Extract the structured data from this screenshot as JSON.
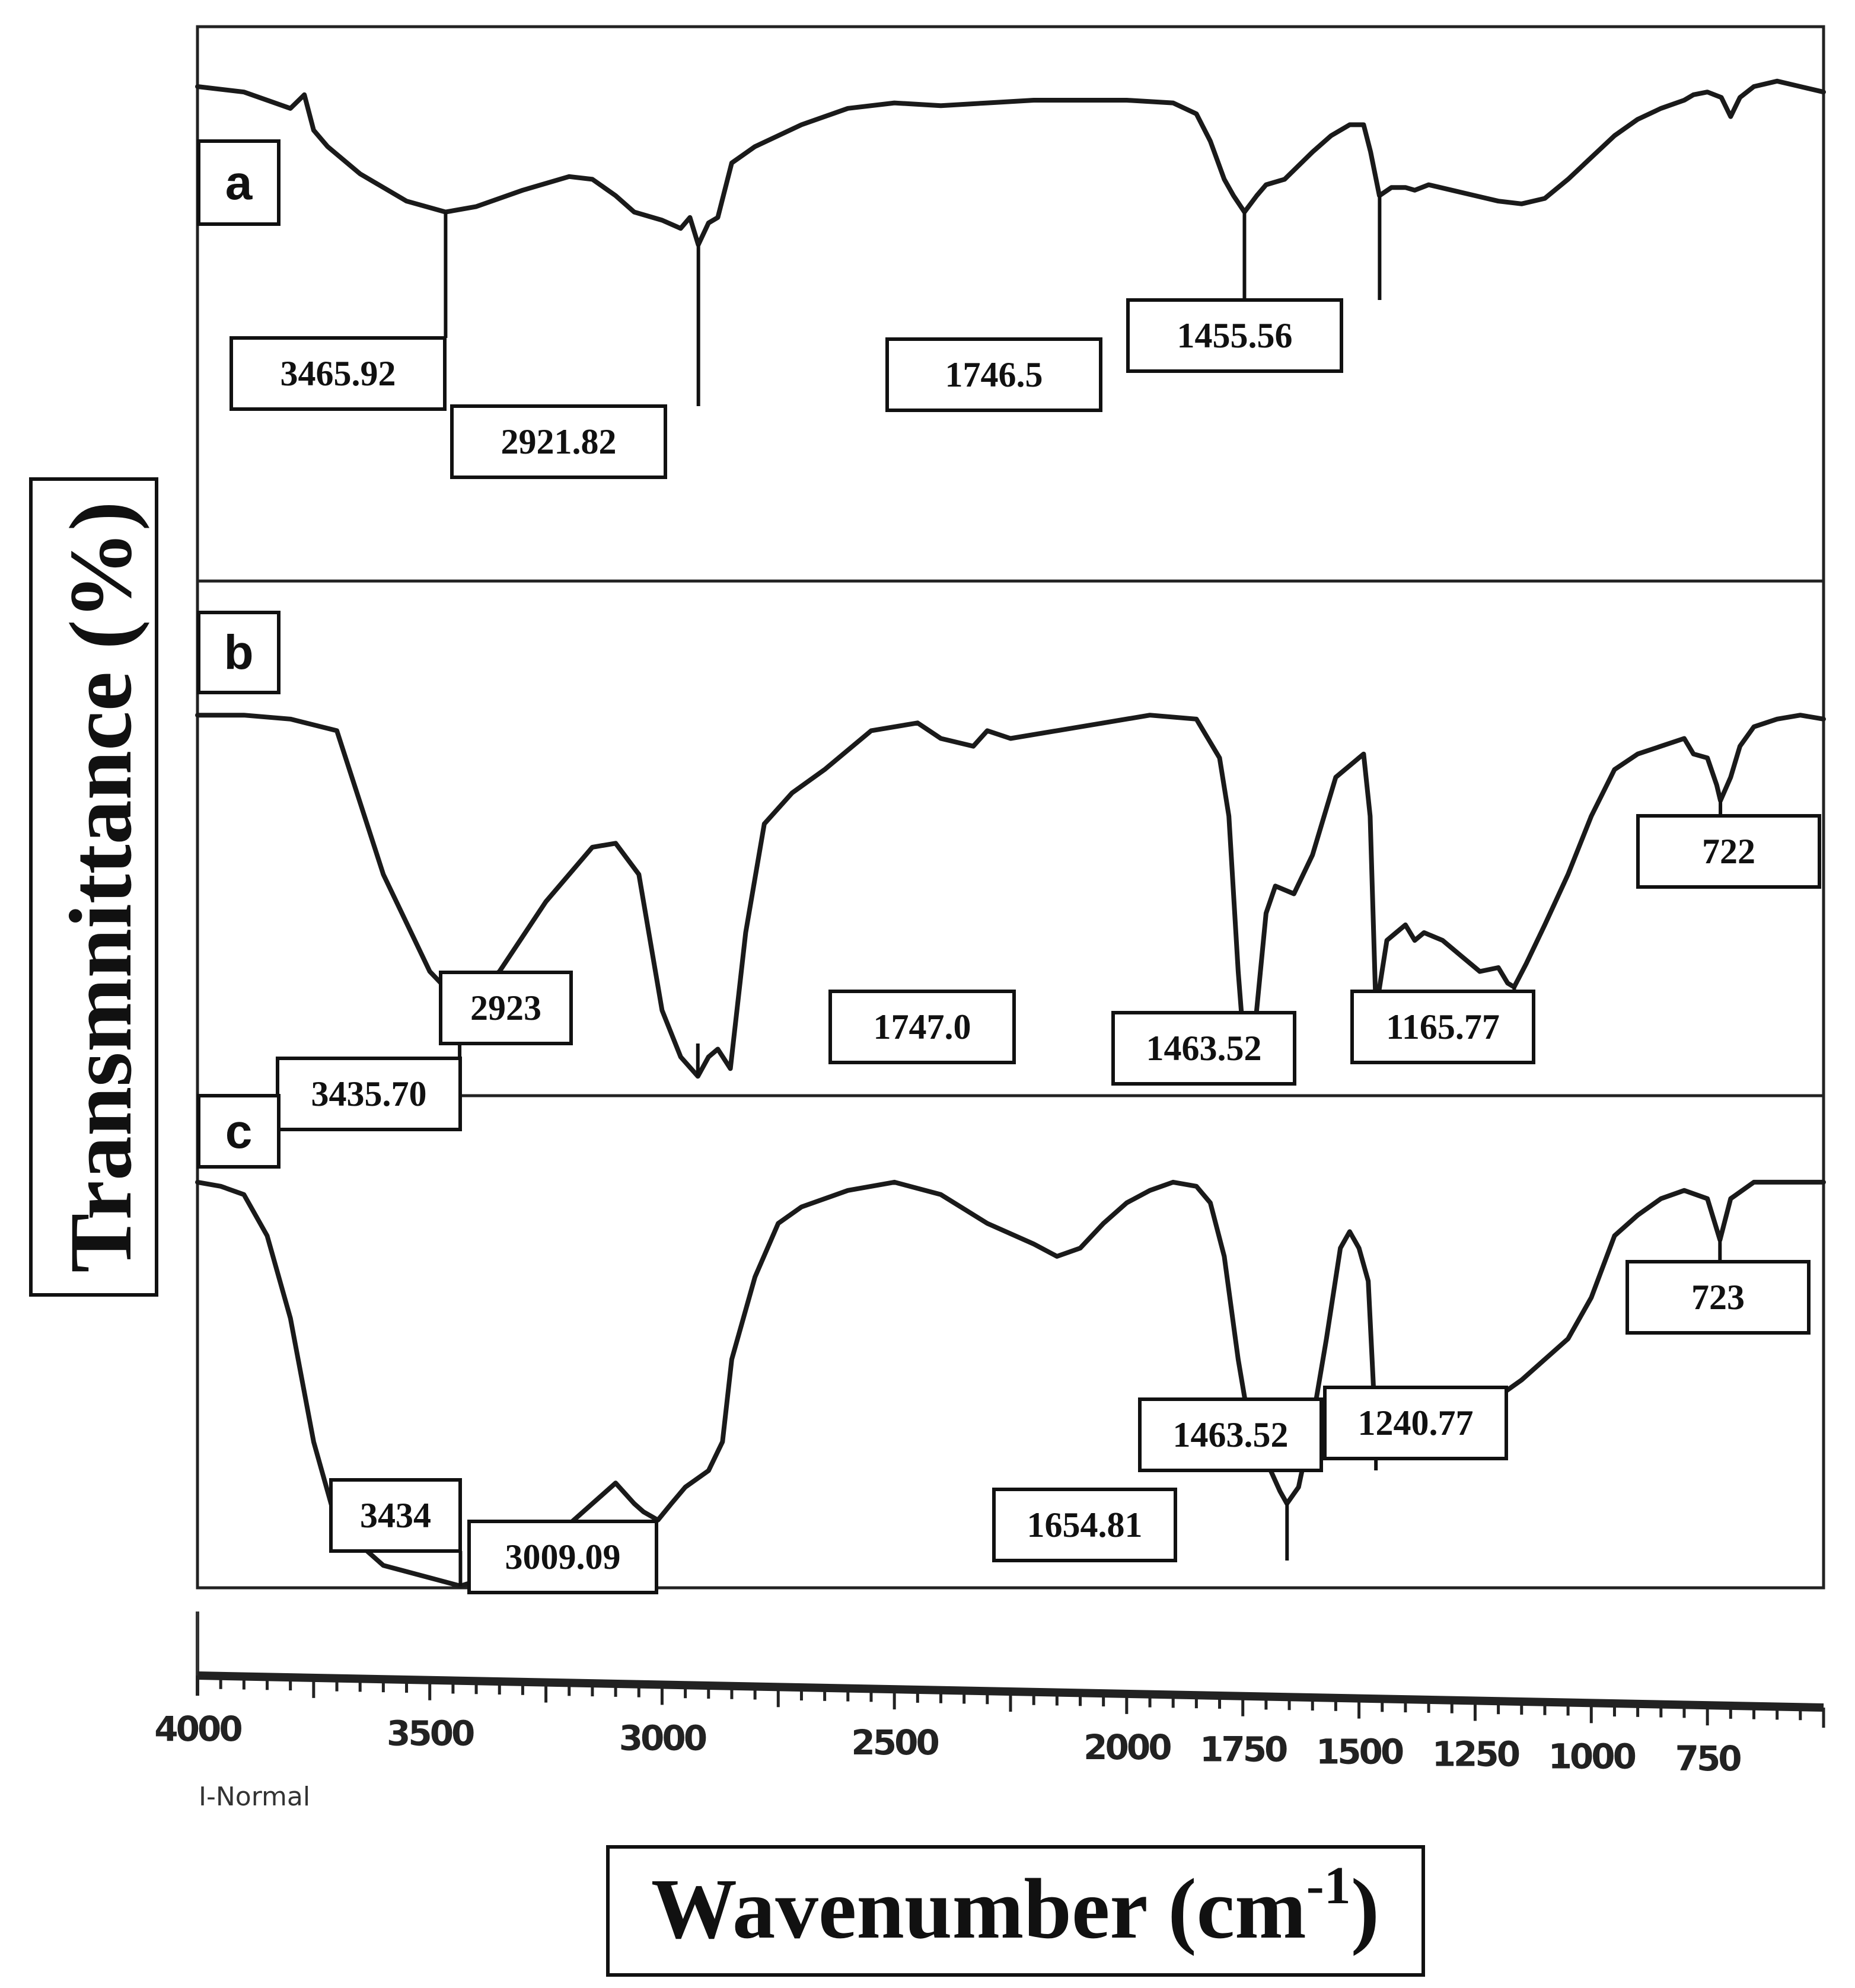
{
  "chart_data": {
    "type": "line",
    "title": "",
    "xlabel": "Wavenumber (cm-1)",
    "xlabel_main": "Wavenumber (cm",
    "xlabel_sup": "-1",
    "xlabel_close": ")",
    "ylabel": "Transmnittance (%)",
    "x_unit_note": "I-Normal",
    "xlim": [
      4000,
      500
    ],
    "x_ticks": [
      4000,
      3500,
      3000,
      2500,
      2000,
      1750,
      1500,
      1250,
      1000,
      750
    ],
    "x_tick_labels": [
      "4000",
      "3500",
      "3000",
      "2500",
      "2000",
      "1750",
      "1500",
      "1250",
      "1000",
      "750"
    ],
    "series": [
      {
        "name": "a",
        "x": [
          4000,
          3900,
          3800,
          3770,
          3750,
          3720,
          3650,
          3550,
          3466,
          3400,
          3300,
          3200,
          3150,
          3100,
          3060,
          3000,
          2960,
          2940,
          2922,
          2900,
          2880,
          2850,
          2800,
          2700,
          2600,
          2500,
          2400,
          2300,
          2200,
          2100,
          2000,
          1900,
          1850,
          1820,
          1790,
          1770,
          1746.5,
          1720,
          1700,
          1660,
          1600,
          1560,
          1520,
          1490,
          1475,
          1456,
          1430,
          1400,
          1380,
          1350,
          1300,
          1250,
          1200,
          1150,
          1100,
          1050,
          1000,
          950,
          900,
          850,
          800,
          780,
          750,
          720,
          700,
          680,
          650,
          600,
          550,
          500
        ],
        "y": [
          90,
          88,
          82,
          87,
          74,
          68,
          58,
          48,
          44,
          46,
          52,
          57,
          56,
          50,
          44,
          41,
          38,
          42,
          32,
          40,
          42,
          62,
          68,
          76,
          82,
          84,
          83,
          84,
          85,
          85,
          85,
          84,
          80,
          70,
          56,
          50,
          44,
          50,
          54,
          56,
          66,
          72,
          76,
          76,
          66,
          50,
          53,
          53,
          52,
          54,
          52,
          50,
          48,
          47,
          49,
          56,
          64,
          72,
          78,
          82,
          85,
          87,
          88,
          86,
          79,
          86,
          90,
          92,
          90,
          88
        ]
      },
      {
        "name": "b",
        "x": [
          4000,
          3900,
          3800,
          3700,
          3600,
          3500,
          3436,
          3350,
          3250,
          3150,
          3100,
          3050,
          3000,
          2960,
          2923,
          2900,
          2880,
          2853,
          2820,
          2780,
          2720,
          2650,
          2550,
          2450,
          2400,
          2330,
          2300,
          2250,
          2150,
          2050,
          1950,
          1850,
          1800,
          1780,
          1760,
          1747,
          1730,
          1700,
          1680,
          1640,
          1600,
          1550,
          1510,
          1490,
          1476,
          1463.5,
          1440,
          1420,
          1400,
          1380,
          1360,
          1320,
          1280,
          1240,
          1200,
          1180,
          1166,
          1140,
          1100,
          1050,
          1000,
          950,
          900,
          850,
          800,
          780,
          750,
          730,
          722,
          700,
          680,
          650,
          600,
          550,
          500
        ],
        "y": [
          96,
          96,
          95,
          92,
          55,
          30,
          22,
          30,
          48,
          62,
          63,
          55,
          20,
          8,
          3,
          8,
          10,
          5,
          40,
          68,
          76,
          82,
          92,
          94,
          90,
          88,
          92,
          90,
          92,
          94,
          96,
          95,
          85,
          70,
          30,
          10,
          8,
          45,
          52,
          50,
          60,
          80,
          84,
          86,
          70,
          20,
          38,
          40,
          42,
          38,
          40,
          38,
          34,
          30,
          31,
          27,
          26,
          32,
          42,
          55,
          70,
          82,
          86,
          88,
          90,
          86,
          85,
          78,
          74,
          80,
          88,
          93,
          95,
          96,
          95
        ]
      },
      {
        "name": "c",
        "x": [
          4000,
          3950,
          3900,
          3850,
          3800,
          3750,
          3700,
          3600,
          3500,
          3434,
          3350,
          3250,
          3150,
          3100,
          3060,
          3040,
          3009,
          2980,
          2950,
          2900,
          2870,
          2850,
          2800,
          2750,
          2700,
          2600,
          2500,
          2400,
          2300,
          2200,
          2150,
          2100,
          2050,
          2000,
          1950,
          1900,
          1850,
          1820,
          1790,
          1760,
          1730,
          1710,
          1690,
          1670,
          1655,
          1630,
          1600,
          1570,
          1540,
          1520,
          1500,
          1480,
          1463.5,
          1440,
          1420,
          1400,
          1380,
          1360,
          1330,
          1300,
          1270,
          1241,
          1200,
          1150,
          1100,
          1050,
          1000,
          950,
          900,
          850,
          800,
          750,
          723,
          700,
          650,
          600,
          550,
          500
        ],
        "y": [
          98,
          97,
          95,
          85,
          65,
          35,
          15,
          5,
          2,
          0,
          3,
          10,
          20,
          25,
          20,
          18,
          16,
          20,
          24,
          28,
          35,
          55,
          75,
          88,
          92,
          96,
          98,
          95,
          88,
          83,
          80,
          82,
          88,
          93,
          96,
          98,
          97,
          93,
          80,
          55,
          35,
          30,
          28,
          23,
          20,
          24,
          40,
          60,
          82,
          86,
          82,
          74,
          36,
          44,
          46,
          44,
          46,
          48,
          48,
          46,
          46,
          45,
          46,
          50,
          55,
          60,
          70,
          85,
          90,
          94,
          96,
          94,
          84,
          94,
          98,
          98,
          98,
          98
        ]
      }
    ],
    "panels": [
      {
        "letter": "a",
        "annotations": [
          {
            "label": "3465.92",
            "x": 3465.92
          },
          {
            "label": "2921.82",
            "x": 2921.82
          },
          {
            "label": "1746.5",
            "x": 1746.5
          },
          {
            "label": "1455.56",
            "x": 1455.56
          }
        ]
      },
      {
        "letter": "b",
        "annotations": [
          {
            "label": "3435.70",
            "x": 3435.7
          },
          {
            "label": "2923",
            "x": 2923
          },
          {
            "label": "1747.0",
            "x": 1747.0
          },
          {
            "label": "1463.52",
            "x": 1463.52
          },
          {
            "label": "1165.77",
            "x": 1165.77
          },
          {
            "label": "722",
            "x": 722
          }
        ]
      },
      {
        "letter": "c",
        "annotations": [
          {
            "label": "3434",
            "x": 3434
          },
          {
            "label": "3009.09",
            "x": 3009.09
          },
          {
            "label": "1654.81",
            "x": 1654.81
          },
          {
            "label": "1463.52",
            "x": 1463.52
          },
          {
            "label": "1240.77",
            "x": 1240.77
          },
          {
            "label": "723",
            "x": 723
          }
        ]
      }
    ]
  }
}
